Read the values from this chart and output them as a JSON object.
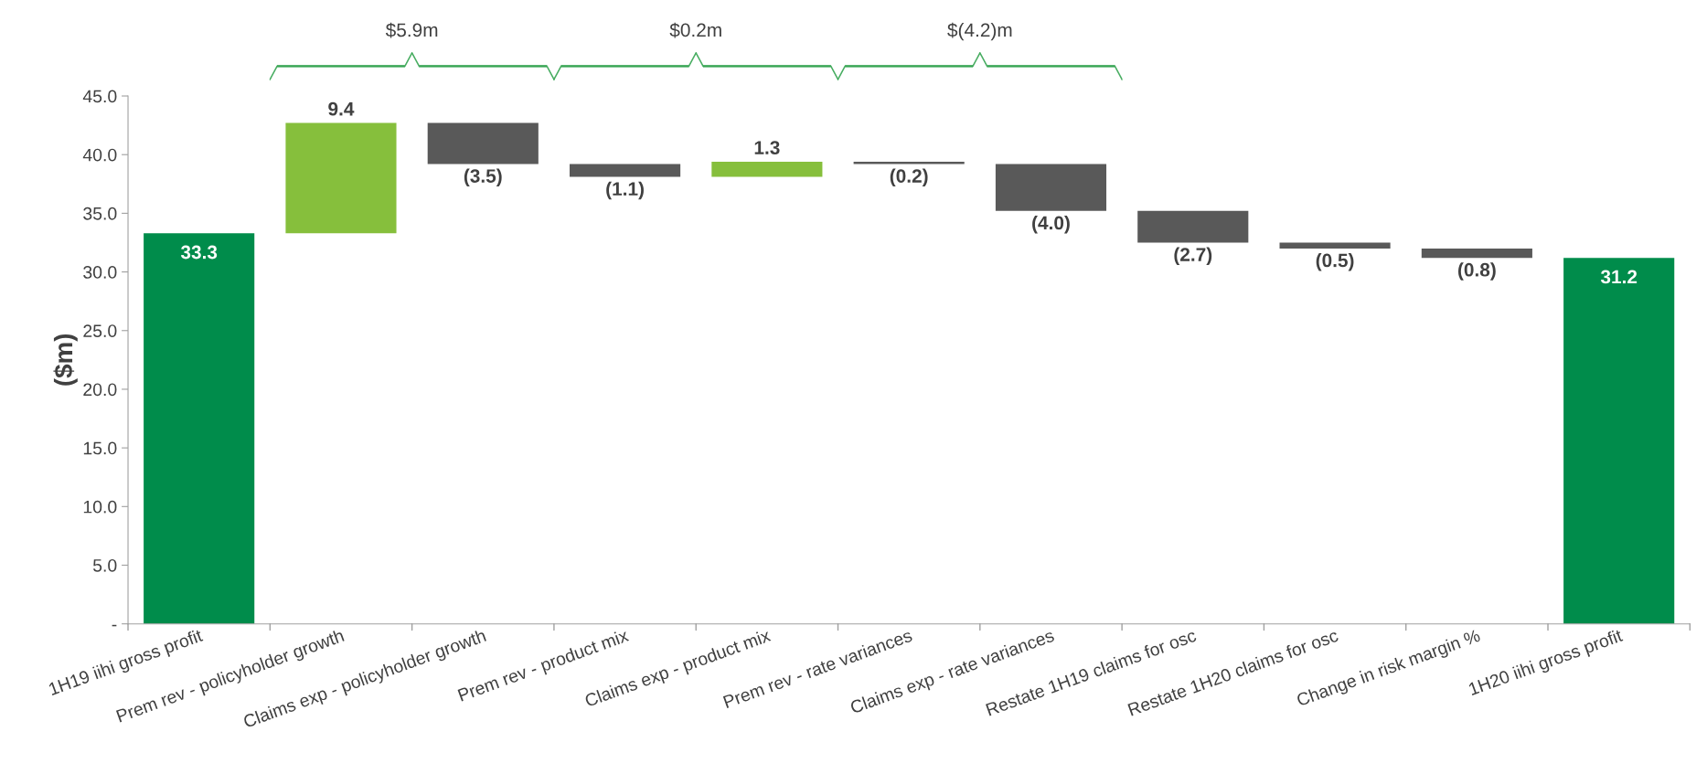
{
  "chart_data": {
    "type": "bar",
    "ylabel": "($m)",
    "categories": [
      "1H19 iihi gross profit",
      "Prem rev - policyholder growth",
      "Claims exp - policyholder growth",
      "Prem rev - product mix",
      "Claims exp - product mix",
      "Prem rev - rate variances",
      "Claims exp - rate variances",
      "Restate 1H19 claims for osc",
      "Restate 1H20 claims for osc",
      "Change in risk margin %",
      "1H20 iihi gross profit"
    ],
    "values": [
      33.3,
      9.4,
      -3.5,
      -1.1,
      1.3,
      -0.2,
      -4.0,
      -2.7,
      -0.5,
      -0.8,
      31.2
    ],
    "base": [
      0,
      33.3,
      42.7,
      39.2,
      38.1,
      39.4,
      39.2,
      35.2,
      32.5,
      32.0,
      0
    ],
    "colors": [
      "#008c4b",
      "#86bf3c",
      "#595959",
      "#595959",
      "#86bf3c",
      "#595959",
      "#595959",
      "#595959",
      "#595959",
      "#595959",
      "#008c4b"
    ],
    "value_labels": [
      "33.3",
      "9.4",
      "(3.5)",
      "(1.1)",
      "1.3",
      "(0.2)",
      "(4.0)",
      "(2.7)",
      "(0.5)",
      "(0.8)",
      "31.2"
    ],
    "ylim": [
      0,
      45
    ],
    "yticks": [
      {
        "value": 0,
        "label": "-"
      },
      {
        "value": 5,
        "label": "5.0"
      },
      {
        "value": 10,
        "label": "10.0"
      },
      {
        "value": 15,
        "label": "15.0"
      },
      {
        "value": 20,
        "label": "20.0"
      },
      {
        "value": 25,
        "label": "25.0"
      },
      {
        "value": 30,
        "label": "30.0"
      },
      {
        "value": 35,
        "label": "35.0"
      },
      {
        "value": 40,
        "label": "40.0"
      },
      {
        "value": 45,
        "label": "45.0"
      }
    ],
    "annotations": [
      "$5.9m",
      "$0.2m",
      "$(4.2)m"
    ],
    "grid": false,
    "legend": false
  }
}
